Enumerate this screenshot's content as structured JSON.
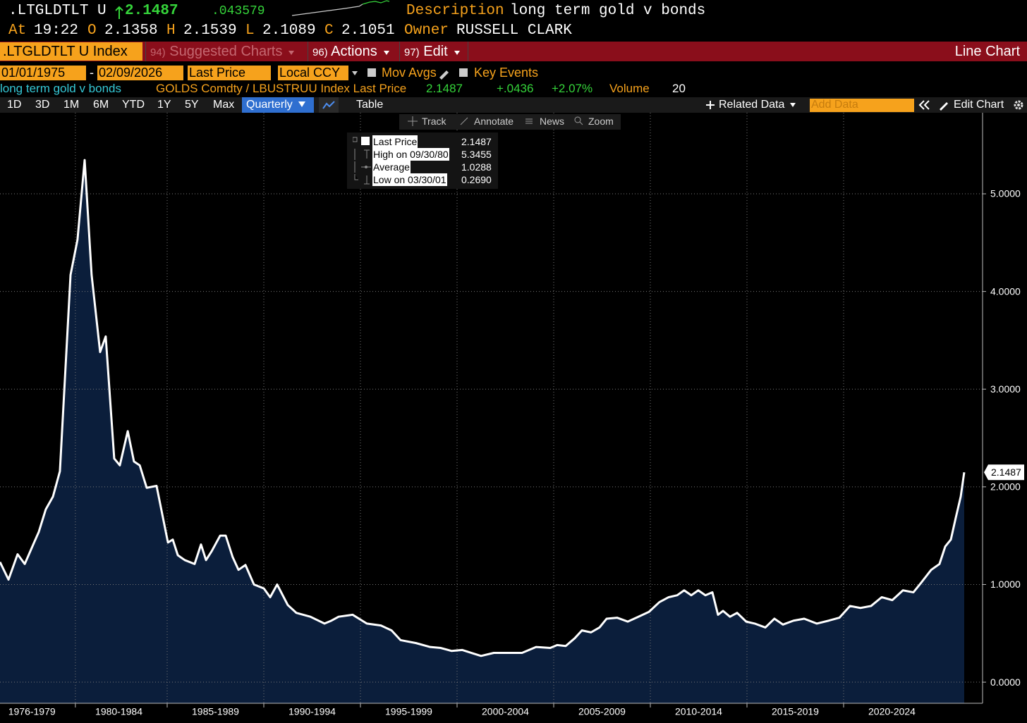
{
  "header": {
    "ticker": ".LTGLDTLT U",
    "last_price": "2.1487",
    "change": ".043579",
    "description_label": "Description",
    "description": "long term gold v bonds",
    "time_label": "At",
    "time": "19:22",
    "open_label": "O",
    "open": "2.1358",
    "high_label": "H",
    "high": "2.1539",
    "low_label": "L",
    "low": "2.1089",
    "close_label": "C",
    "close": "2.1051",
    "owner_label": "Owner",
    "owner": "RUSSELL CLARK"
  },
  "menu": {
    "security": ".LTGLDTLT U Index",
    "items": [
      {
        "number": "94)",
        "label": "Suggested Charts"
      },
      {
        "number": "96)",
        "label": "Actions"
      },
      {
        "number": "97)",
        "label": "Edit"
      }
    ],
    "chart_type": "Line Chart"
  },
  "controls": {
    "start_date": "01/01/1975",
    "date_separator": "-",
    "end_date": "02/09/2026",
    "field": "Last Price",
    "currency": "Local CCY",
    "mov_avgs": "Mov Avgs",
    "key_events": "Key Events"
  },
  "info": {
    "name": "long term gold v bonds",
    "formula": "GOLDS Comdty / LBUSTRUU Index Last Price",
    "last": "2.1487",
    "change": "+.0436",
    "pct_change": "+2.07%",
    "volume_label": "Volume",
    "volume": "20"
  },
  "toolbar": {
    "periods": [
      "1D",
      "3D",
      "1M",
      "6M",
      "YTD",
      "1Y",
      "5Y",
      "Max"
    ],
    "frequency": "Quarterly",
    "table": "Table",
    "related_data": "Related Data",
    "add_data": "Add Data",
    "edit_chart": "Edit Chart"
  },
  "chart_tools": [
    "Track",
    "Annotate",
    "News",
    "Zoom"
  ],
  "chart_data": {
    "type": "area",
    "legend": [
      {
        "label": "Last Price",
        "value": "2.1487"
      },
      {
        "label": "High on 09/30/80",
        "value": "5.3455"
      },
      {
        "label": "Average",
        "value": "1.0288"
      },
      {
        "label": "Low on 03/30/01",
        "value": "0.2690"
      }
    ],
    "x": [
      1976.35,
      1976.79,
      1977.26,
      1977.63,
      1978.07,
      1978.36,
      1978.72,
      1979.09,
      1979.45,
      1980.0,
      1980.36,
      1980.73,
      1981.09,
      1981.53,
      1981.82,
      1982.26,
      1982.55,
      1982.96,
      1983.28,
      1983.58,
      1983.94,
      1984.45,
      1985.04,
      1985.29,
      1985.55,
      1985.91,
      1986.42,
      1986.75,
      1987.01,
      1987.3,
      1987.74,
      1988.03,
      1988.39,
      1988.69,
      1989.05,
      1989.49,
      1990.0,
      1990.33,
      1990.69,
      1991.24,
      1991.68,
      1992.41,
      1993.14,
      1993.5,
      1993.87,
      1994.6,
      1995.33,
      1996.06,
      1996.61,
      1997.08,
      1997.88,
      1998.61,
      1999.16,
      1999.71,
      2000.26,
      2000.73,
      2001.24,
      2001.9,
      2002.63,
      2003.36,
      2004.09,
      2004.82,
      2005.18,
      2005.62,
      2006.09,
      2006.46,
      2006.93,
      2007.37,
      2007.74,
      2008.28,
      2008.83,
      2009.38,
      2009.93,
      2010.47,
      2010.95,
      2011.39,
      2011.75,
      2012.12,
      2012.48,
      2012.85,
      2013.21,
      2013.5,
      2013.76,
      2014.12,
      2014.49,
      2014.96,
      2015.4,
      2015.95,
      2016.42,
      2016.86,
      2017.41,
      2017.96,
      2018.61,
      2019.23,
      2019.78,
      2020.33,
      2020.87,
      2021.42,
      2021.97,
      2022.52,
      2023.07,
      2023.61,
      2023.98,
      2024.53,
      2024.96,
      2025.26,
      2025.55,
      2025.8,
      2026.06,
      2026.24
    ],
    "series": [
      {
        "name": "long term gold v bonds",
        "color": "#ffffff",
        "fill": "#0b1e3b",
        "values": [
          1.23,
          1.05,
          1.31,
          1.21,
          1.41,
          1.54,
          1.77,
          1.9,
          2.16,
          4.17,
          4.53,
          5.3455,
          4.17,
          3.38,
          3.54,
          2.29,
          2.22,
          2.57,
          2.26,
          2.22,
          1.99,
          2.01,
          1.43,
          1.46,
          1.3,
          1.25,
          1.21,
          1.41,
          1.25,
          1.34,
          1.5,
          1.5,
          1.28,
          1.15,
          1.2,
          1.0,
          0.96,
          0.87,
          1.0,
          0.79,
          0.71,
          0.67,
          0.6,
          0.63,
          0.67,
          0.69,
          0.6,
          0.58,
          0.53,
          0.43,
          0.4,
          0.36,
          0.35,
          0.32,
          0.33,
          0.3,
          0.269,
          0.3,
          0.3,
          0.3,
          0.36,
          0.35,
          0.38,
          0.37,
          0.45,
          0.53,
          0.51,
          0.56,
          0.65,
          0.66,
          0.62,
          0.67,
          0.72,
          0.82,
          0.87,
          0.89,
          0.94,
          0.89,
          0.94,
          0.89,
          0.92,
          0.69,
          0.73,
          0.67,
          0.71,
          0.62,
          0.6,
          0.56,
          0.65,
          0.59,
          0.63,
          0.65,
          0.6,
          0.63,
          0.66,
          0.78,
          0.76,
          0.78,
          0.87,
          0.84,
          0.94,
          0.92,
          1.01,
          1.15,
          1.21,
          1.39,
          1.46,
          1.68,
          1.9,
          2.1487
        ]
      }
    ],
    "xlim": [
      1976.35,
      2027.19
    ],
    "xticks": [
      {
        "value": 1978,
        "label": "1976-1979"
      },
      {
        "value": 1982.5,
        "label": "1980-1984"
      },
      {
        "value": 1987.5,
        "label": "1985-1989"
      },
      {
        "value": 1992.5,
        "label": "1990-1994"
      },
      {
        "value": 1997.5,
        "label": "1995-1999"
      },
      {
        "value": 2002.5,
        "label": "2000-2004"
      },
      {
        "value": 2007.5,
        "label": "2005-2009"
      },
      {
        "value": 2012.5,
        "label": "2010-2014"
      },
      {
        "value": 2017.5,
        "label": "2015-2019"
      },
      {
        "value": 2022.5,
        "label": "2020-2024"
      }
    ],
    "ylim": [
      -0.216,
      5.83
    ],
    "yticks": [
      {
        "value": 0,
        "label": "0.0000"
      },
      {
        "value": 1,
        "label": "1.0000"
      },
      {
        "value": 2,
        "label": "2.0000"
      },
      {
        "value": 3,
        "label": "3.0000"
      },
      {
        "value": 4,
        "label": "4.0000"
      },
      {
        "value": 5,
        "label": "5.0000"
      }
    ],
    "grid": true
  }
}
